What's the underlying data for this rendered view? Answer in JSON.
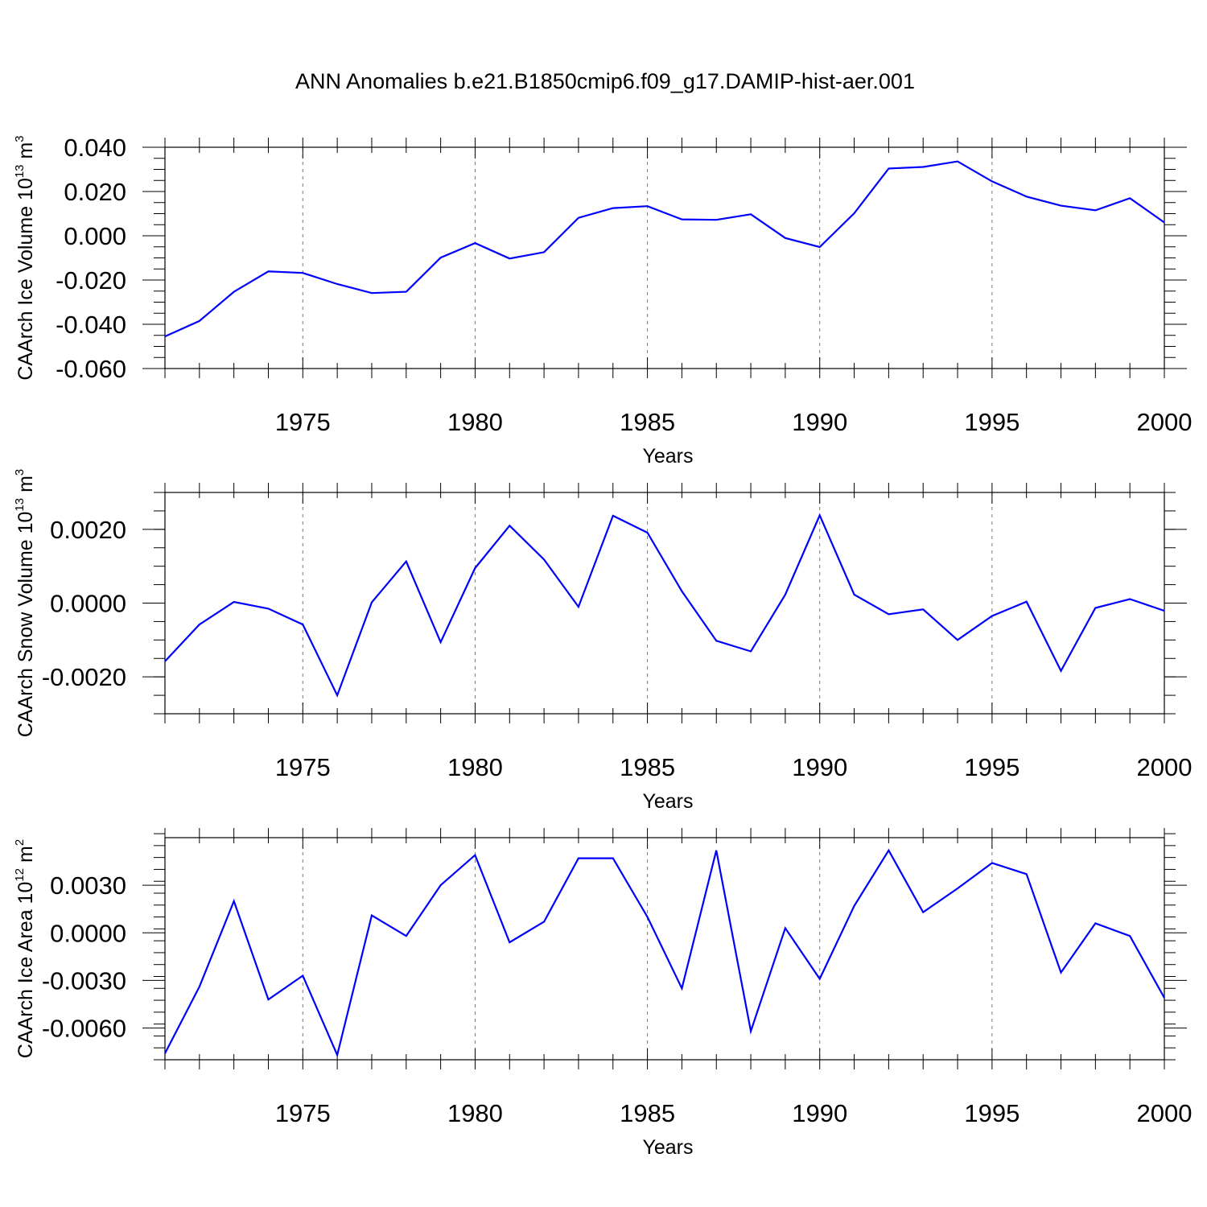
{
  "title": "ANN Anomalies b.e21.B1850cmip6.f09_g17.DAMIP-hist-aer.001",
  "series_color": "#0000ff",
  "chart_data": [
    {
      "type": "line",
      "xlabel": "Years",
      "ylabel": "CAArch Ice Volume 10",
      "ylabel_exp": "13",
      "ylabel_unit": " m",
      "ylabel_unit_exp": "3",
      "xlim": [
        1971,
        2000
      ],
      "ylim": [
        -0.06,
        0.04
      ],
      "x_ticks": [
        1975,
        1980,
        1985,
        1990,
        1995,
        2000
      ],
      "x_tick_labels": [
        "1975",
        "1980",
        "1985",
        "1990",
        "1995",
        "2000"
      ],
      "y_ticks": [
        -0.06,
        -0.04,
        -0.02,
        0.0,
        0.02,
        0.04
      ],
      "y_tick_labels": [
        "-0.060",
        "-0.040",
        "-0.020",
        "0.000",
        "0.020",
        "0.040"
      ],
      "y_minor_step": 0.005,
      "x": [
        1971,
        1972,
        1973,
        1974,
        1975,
        1976,
        1977,
        1978,
        1979,
        1980,
        1981,
        1982,
        1983,
        1984,
        1985,
        1986,
        1987,
        1988,
        1989,
        1990,
        1991,
        1992,
        1993,
        1994,
        1995,
        1996,
        1997,
        1998,
        1999,
        2000
      ],
      "values": [
        -0.0455,
        -0.0385,
        -0.0253,
        -0.0161,
        -0.0168,
        -0.0218,
        -0.0259,
        -0.0253,
        -0.0099,
        -0.0033,
        -0.0103,
        -0.0074,
        0.0081,
        0.0125,
        0.0134,
        0.0074,
        0.0072,
        0.0097,
        -0.001,
        -0.0051,
        0.0102,
        0.0304,
        0.0311,
        0.0336,
        0.0246,
        0.0177,
        0.0136,
        0.0115,
        0.017,
        0.006
      ]
    },
    {
      "type": "line",
      "xlabel": "Years",
      "ylabel": "CAArch Snow Volume 10",
      "ylabel_exp": "13",
      "ylabel_unit": " m",
      "ylabel_unit_exp": "3",
      "xlim": [
        1971,
        2000
      ],
      "ylim": [
        -0.003,
        0.003
      ],
      "x_ticks": [
        1975,
        1980,
        1985,
        1990,
        1995,
        2000
      ],
      "x_tick_labels": [
        "1975",
        "1980",
        "1985",
        "1990",
        "1995",
        "2000"
      ],
      "y_ticks": [
        -0.002,
        0.0,
        0.002
      ],
      "y_tick_labels": [
        "-0.0020",
        "0.0000",
        "0.0020"
      ],
      "y_minor_step": 0.0005,
      "x": [
        1971,
        1972,
        1973,
        1974,
        1975,
        1976,
        1977,
        1978,
        1979,
        1980,
        1981,
        1982,
        1983,
        1984,
        1985,
        1986,
        1987,
        1988,
        1989,
        1990,
        1991,
        1992,
        1993,
        1994,
        1995,
        1996,
        1997,
        1998,
        1999,
        2000
      ],
      "values": [
        -0.00158,
        -0.00058,
        3e-05,
        -0.00015,
        -0.00058,
        -0.0025,
        2e-05,
        0.00113,
        -0.00106,
        0.00095,
        0.0021,
        0.00118,
        -0.0001,
        0.00237,
        0.00191,
        0.00032,
        -0.00102,
        -0.00131,
        0.00023,
        0.00238,
        0.00023,
        -0.0003,
        -0.00017,
        -0.001,
        -0.00035,
        4e-05,
        -0.00184,
        -0.00013,
        0.00011,
        -0.00021
      ]
    },
    {
      "type": "line",
      "xlabel": "Years",
      "ylabel": "CAArch Ice Area 10",
      "ylabel_exp": "12",
      "ylabel_unit": " m",
      "ylabel_unit_exp": "2",
      "xlim": [
        1971,
        2000
      ],
      "ylim": [
        -0.008,
        0.006
      ],
      "x_ticks": [
        1975,
        1980,
        1985,
        1990,
        1995,
        2000
      ],
      "x_tick_labels": [
        "1975",
        "1980",
        "1985",
        "1990",
        "1995",
        "2000"
      ],
      "y_ticks": [
        -0.006,
        -0.003,
        0.0,
        0.003
      ],
      "y_tick_labels": [
        "-0.0060",
        "-0.0030",
        "0.0000",
        "0.0030"
      ],
      "y_minor_step": 0.00075,
      "x": [
        1971,
        1972,
        1973,
        1974,
        1975,
        1976,
        1977,
        1978,
        1979,
        1980,
        1981,
        1982,
        1983,
        1984,
        1985,
        1986,
        1987,
        1988,
        1989,
        1990,
        1991,
        1992,
        1993,
        1994,
        1995,
        1996,
        1997,
        1998,
        1999,
        2000
      ],
      "values": [
        -0.0076,
        -0.0034,
        0.002,
        -0.0042,
        -0.0027,
        -0.0077,
        0.0011,
        -0.0002,
        0.003,
        0.0049,
        -0.0006,
        0.0007,
        0.0047,
        0.0047,
        0.001,
        -0.0035,
        0.0052,
        -0.0062,
        0.0003,
        -0.0029,
        0.0017,
        0.0052,
        0.0013,
        0.0028,
        0.0044,
        0.0037,
        -0.0025,
        0.0006,
        -0.0002,
        -0.0041
      ]
    }
  ]
}
